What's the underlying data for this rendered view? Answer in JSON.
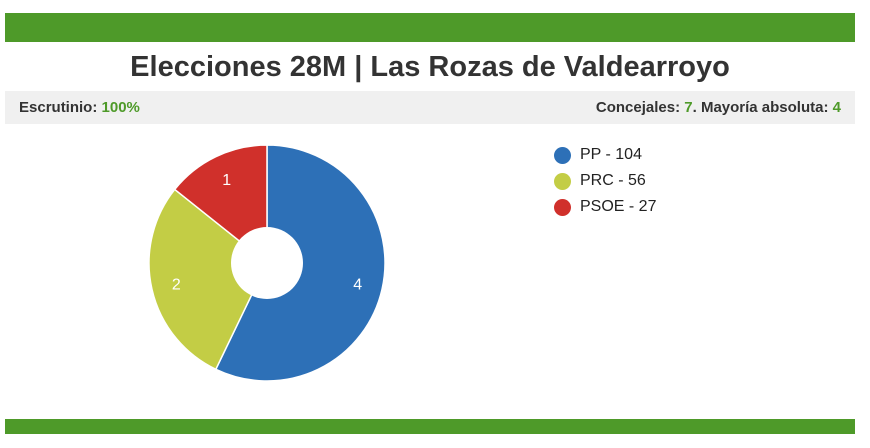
{
  "header": {
    "title": "Elecciones 28M | Las Rozas de Valdearroyo"
  },
  "info": {
    "escrutinio_label": "Escrutinio:",
    "escrutinio_value": "100%",
    "concejales_label": "Concejales:",
    "concejales_value": "7",
    "mayoria_label": ". Mayoría absoluta:",
    "mayoria_value": "4"
  },
  "colors": {
    "brand_green": "#4e9a29",
    "PP": "#2d70b7",
    "PRC": "#c3cd45",
    "PSOE": "#d0302b"
  },
  "chart_data": {
    "type": "pie",
    "style": "donut",
    "series": [
      {
        "name": "PP",
        "votes": 104,
        "seats": 4,
        "color": "#2d70b7",
        "legend": "PP - 104"
      },
      {
        "name": "PRC",
        "votes": 56,
        "seats": 2,
        "color": "#c3cd45",
        "legend": "PRC - 56"
      },
      {
        "name": "PSOE",
        "votes": 27,
        "seats": 1,
        "color": "#d0302b",
        "legend": "PSOE - 27"
      }
    ],
    "slice_labels": [
      "4",
      "2",
      "1"
    ],
    "legend_position": "top-right"
  }
}
